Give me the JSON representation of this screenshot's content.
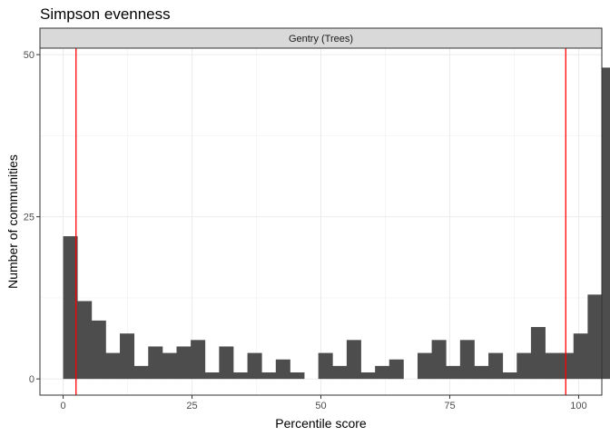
{
  "chart_data": {
    "type": "bar",
    "title": "Simpson evenness",
    "facet_label": "Gentry (Trees)",
    "xlabel": "Percentile score",
    "ylabel": "Number of communities",
    "xlim": [
      -4.5,
      104.5
    ],
    "ylim": [
      -2.5,
      51
    ],
    "x_ticks": [
      0,
      25,
      50,
      75,
      100
    ],
    "y_ticks": [
      0,
      25,
      50
    ],
    "grid": true,
    "bin_width": 2.75,
    "bin_start": 0,
    "bar_color": "#4d4d4d",
    "values": [
      22,
      12,
      9,
      4,
      7,
      2,
      5,
      4,
      5,
      6,
      1,
      5,
      1,
      4,
      1,
      3,
      1,
      0,
      4,
      2,
      6,
      1,
      2,
      3,
      0,
      4,
      6,
      2,
      6,
      2,
      4,
      1,
      4,
      8,
      4,
      4,
      7,
      13,
      48
    ],
    "reference_lines": [
      {
        "x": 2.5,
        "color": "#ff0000"
      },
      {
        "x": 97.5,
        "color": "#ff0000"
      }
    ]
  }
}
